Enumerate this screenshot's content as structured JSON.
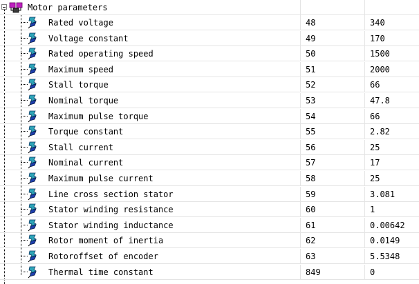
{
  "root": {
    "label": "Motor parameters",
    "icon": "motor-parameters-folder-icon"
  },
  "items": [
    {
      "label": "Rated voltage",
      "num": "48",
      "value": "340"
    },
    {
      "label": "Voltage constant",
      "num": "49",
      "value": "170"
    },
    {
      "label": "Rated operating speed",
      "num": "50",
      "value": "1500"
    },
    {
      "label": "Maximum speed",
      "num": "51",
      "value": "2000"
    },
    {
      "label": "Stall torque",
      "num": "52",
      "value": "66"
    },
    {
      "label": "Nominal torque",
      "num": "53",
      "value": "47.8"
    },
    {
      "label": "Maximum pulse torque",
      "num": "54",
      "value": "66"
    },
    {
      "label": "Torque constant",
      "num": "55",
      "value": "2.82"
    },
    {
      "label": "Stall current",
      "num": "56",
      "value": "25"
    },
    {
      "label": "Nominal current",
      "num": "57",
      "value": "17"
    },
    {
      "label": "Maximum pulse current",
      "num": "58",
      "value": "25"
    },
    {
      "label": "Line cross section stator",
      "num": "59",
      "value": "3.081"
    },
    {
      "label": "Stator winding resistance",
      "num": "60",
      "value": "1"
    },
    {
      "label": "Stator winding inductance",
      "num": "61",
      "value": "0.00642"
    },
    {
      "label": "Rotor moment of inertia",
      "num": "62",
      "value": "0.0149"
    },
    {
      "label": "Rotoroffset of encoder",
      "num": "63",
      "value": "5.5348"
    },
    {
      "label": "Thermal time constant",
      "num": "849",
      "value": "0"
    }
  ],
  "colors": {
    "icon_teal": "#2ea5b8",
    "icon_blue": "#1e3fae",
    "icon_magenta": "#c020c0",
    "grid": "#e4e4e4"
  }
}
